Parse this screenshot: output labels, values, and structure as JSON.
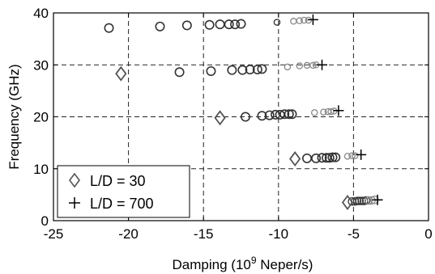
{
  "chart_data": {
    "type": "scatter",
    "xlabel": "Damping (10",
    "xlabel_sup": "9",
    "xlabel_suffix": " Neper/s)",
    "ylabel": "Frequency (GHz)",
    "xlim": [
      -25,
      0
    ],
    "ylim": [
      0,
      40
    ],
    "x_ticks": [
      -25,
      -20,
      -15,
      -10,
      -5,
      0
    ],
    "y_ticks": [
      0,
      10,
      20,
      30,
      40
    ],
    "x_tick_labels": [
      "-25",
      "-20",
      "-15",
      "-10",
      "-5",
      "0"
    ],
    "y_tick_labels": [
      "0",
      "10",
      "20",
      "30",
      "40"
    ],
    "grid": true,
    "legend_position": "bottom-left",
    "colors": {
      "circle_dark": "#333333",
      "circle_light": "#888888",
      "marker": "#555555",
      "plus": "#000000"
    },
    "series": [
      {
        "name": "L/D = 30",
        "marker": "diamond",
        "points": [
          [
            -20.5,
            28.3
          ],
          [
            -13.9,
            19.8
          ],
          [
            -8.9,
            11.9
          ],
          [
            -5.4,
            3.5
          ]
        ]
      },
      {
        "name": "L/D = 700",
        "marker": "plus",
        "points": [
          [
            -7.7,
            38.7
          ],
          [
            -7.1,
            30.0
          ],
          [
            -6.0,
            21.2
          ],
          [
            -4.5,
            12.7
          ],
          [
            -3.4,
            4.0
          ]
        ]
      },
      {
        "marker": "circle",
        "points": [
          [
            -21.3,
            37.1
          ],
          [
            -17.9,
            37.4
          ],
          [
            -16.1,
            37.6
          ],
          [
            -14.6,
            37.7
          ],
          [
            -13.9,
            37.8
          ],
          [
            -13.3,
            37.8
          ],
          [
            -12.9,
            37.8
          ],
          [
            -12.5,
            37.9
          ],
          [
            -10.1,
            38.2
          ],
          [
            -9.0,
            38.4
          ],
          [
            -8.6,
            38.5
          ],
          [
            -8.3,
            38.6
          ],
          [
            -8.0,
            38.6
          ],
          [
            -16.6,
            28.6
          ],
          [
            -14.5,
            28.8
          ],
          [
            -13.1,
            29.0
          ],
          [
            -12.4,
            29.0
          ],
          [
            -11.9,
            29.1
          ],
          [
            -11.4,
            29.1
          ],
          [
            -11.1,
            29.2
          ],
          [
            -9.4,
            29.6
          ],
          [
            -8.6,
            29.8
          ],
          [
            -8.1,
            29.9
          ],
          [
            -7.7,
            29.9
          ],
          [
            -7.5,
            30.0
          ],
          [
            -12.2,
            20.0
          ],
          [
            -11.1,
            20.2
          ],
          [
            -10.6,
            20.3
          ],
          [
            -10.2,
            20.4
          ],
          [
            -9.9,
            20.4
          ],
          [
            -9.6,
            20.5
          ],
          [
            -9.3,
            20.5
          ],
          [
            -9.1,
            20.5
          ],
          [
            -7.6,
            20.8
          ],
          [
            -7.0,
            20.9
          ],
          [
            -6.7,
            21.0
          ],
          [
            -6.5,
            21.0
          ],
          [
            -6.3,
            21.1
          ],
          [
            -8.1,
            12.0
          ],
          [
            -7.5,
            12.0
          ],
          [
            -7.1,
            12.1
          ],
          [
            -6.8,
            12.1
          ],
          [
            -6.6,
            12.1
          ],
          [
            -6.4,
            12.2
          ],
          [
            -6.2,
            12.2
          ],
          [
            -5.4,
            12.4
          ],
          [
            -5.1,
            12.5
          ],
          [
            -4.9,
            12.5
          ],
          [
            -5.1,
            3.7
          ],
          [
            -4.9,
            3.7
          ],
          [
            -4.75,
            3.8
          ],
          [
            -4.6,
            3.8
          ],
          [
            -4.45,
            3.8
          ],
          [
            -4.3,
            3.8
          ],
          [
            -4.15,
            3.9
          ],
          [
            -4.0,
            3.9
          ],
          [
            -3.8,
            3.9
          ],
          [
            -3.6,
            4.0
          ]
        ]
      }
    ]
  }
}
